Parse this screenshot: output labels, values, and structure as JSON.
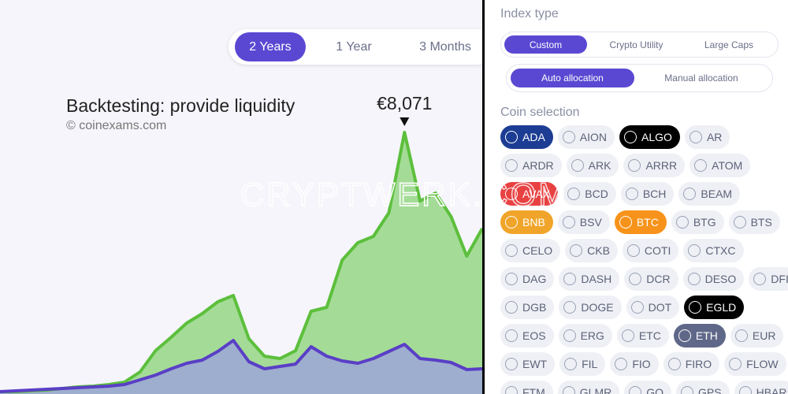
{
  "period_tabs": {
    "options": [
      "2 Years",
      "1 Year",
      "3 Months"
    ],
    "selected": 0
  },
  "chart_data": {
    "type": "area",
    "title": "Backtesting: provide liquidity",
    "source": "© coinexams.com",
    "categories": [
      null,
      null,
      null,
      null,
      null,
      null,
      null,
      null,
      null,
      null,
      null,
      null,
      null,
      null,
      null,
      null,
      null,
      null,
      null,
      null,
      null,
      null,
      null,
      null,
      null,
      null,
      null,
      null,
      null,
      null,
      null,
      null
    ],
    "series": [
      {
        "color": "#5cbf3c",
        "fill": "#a4dc97",
        "values": [
          73,
          73,
          97,
          122,
          170,
          219,
          243,
          292,
          365,
          681,
          1337,
          1750,
          2188,
          2480,
          2844,
          3039,
          1702,
          1167,
          1094,
          1337,
          2553,
          2674,
          4133,
          4668,
          4862,
          5592,
          8071,
          5956,
          6199,
          5470,
          4254,
          5105
        ],
        "value_labels": [
          null,
          null,
          null,
          null,
          null,
          null,
          null,
          null,
          null,
          null,
          null,
          null,
          null,
          null,
          null,
          null,
          null,
          null,
          null,
          null,
          null,
          null,
          null,
          null,
          null,
          null,
          "€8,071",
          null,
          null,
          null,
          null,
          null
        ]
      },
      {
        "color": "#5a3fc6",
        "fill": "#9da6d8",
        "values": [
          73,
          97,
          122,
          146,
          170,
          194,
          219,
          243,
          292,
          438,
          583,
          778,
          948,
          1045,
          1313,
          1653,
          997,
          778,
          851,
          924,
          1459,
          1167,
          1021,
          948,
          1094,
          1313,
          1531,
          1094,
          1045,
          972,
          753,
          778
        ]
      }
    ]
  },
  "watermark": "CRYPTWERK.COM",
  "index_type": {
    "title": "Index type",
    "options": [
      "Custom",
      "Crypto Utility",
      "Large Caps"
    ],
    "selected": 0
  },
  "allocation": {
    "options": [
      "Auto allocation",
      "Manual allocation"
    ],
    "selected": 0
  },
  "coin_selection": {
    "title": "Coin selection",
    "rows": [
      [
        {
          "label": "ADA",
          "selected": true,
          "color": "#1d3d94"
        },
        {
          "label": "AION",
          "selected": false
        },
        {
          "label": "ALGO",
          "selected": true,
          "color": "#000000"
        },
        {
          "label": "AR",
          "selected": false
        }
      ],
      [
        {
          "label": "ARDR",
          "selected": false
        },
        {
          "label": "ARK",
          "selected": false
        },
        {
          "label": "ARRR",
          "selected": false
        },
        {
          "label": "ATOM",
          "selected": false
        }
      ],
      [
        {
          "label": "AVAX",
          "selected": true,
          "color": "#e84142"
        },
        {
          "label": "BCD",
          "selected": false
        },
        {
          "label": "BCH",
          "selected": false
        },
        {
          "label": "BEAM",
          "selected": false
        }
      ],
      [
        {
          "label": "BNB",
          "selected": true,
          "color": "#f0a52a"
        },
        {
          "label": "BSV",
          "selected": false
        },
        {
          "label": "BTC",
          "selected": true,
          "color": "#f7931a"
        },
        {
          "label": "BTG",
          "selected": false
        },
        {
          "label": "BTS",
          "selected": false
        }
      ],
      [
        {
          "label": "CELO",
          "selected": false
        },
        {
          "label": "CKB",
          "selected": false
        },
        {
          "label": "COTI",
          "selected": false
        },
        {
          "label": "CTXC",
          "selected": false
        }
      ],
      [
        {
          "label": "DAG",
          "selected": false
        },
        {
          "label": "DASH",
          "selected": false
        },
        {
          "label": "DCR",
          "selected": false
        },
        {
          "label": "DESO",
          "selected": false
        },
        {
          "label": "DFI",
          "selected": false
        }
      ],
      [
        {
          "label": "DGB",
          "selected": false
        },
        {
          "label": "DOGE",
          "selected": false
        },
        {
          "label": "DOT",
          "selected": false
        },
        {
          "label": "EGLD",
          "selected": true,
          "color": "#000000"
        }
      ],
      [
        {
          "label": "EOS",
          "selected": false
        },
        {
          "label": "ERG",
          "selected": false
        },
        {
          "label": "ETC",
          "selected": false
        },
        {
          "label": "ETH",
          "selected": true,
          "color": "#5f6888"
        },
        {
          "label": "EUR",
          "selected": false
        }
      ],
      [
        {
          "label": "EWT",
          "selected": false
        },
        {
          "label": "FIL",
          "selected": false
        },
        {
          "label": "FIO",
          "selected": false
        },
        {
          "label": "FIRO",
          "selected": false
        },
        {
          "label": "FLOW",
          "selected": false
        }
      ],
      [
        {
          "label": "FTM",
          "selected": false
        },
        {
          "label": "GLMR",
          "selected": false
        },
        {
          "label": "GO",
          "selected": false
        },
        {
          "label": "GPS",
          "selected": false
        },
        {
          "label": "HBAR",
          "selected": false
        }
      ]
    ]
  }
}
